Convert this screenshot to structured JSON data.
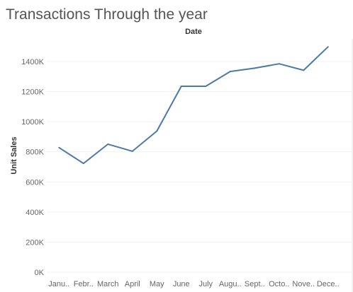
{
  "chart_data": {
    "type": "line",
    "title": "Transactions Through the year",
    "top_label": "Date",
    "ylabel": "Unit Sales",
    "categories": [
      "Janu..",
      "Febr..",
      "March",
      "April",
      "May",
      "June",
      "July",
      "Augu..",
      "Sept..",
      "Octo..",
      "Nove..",
      "Dece.."
    ],
    "series": [
      {
        "values": [
          828000,
          723000,
          851000,
          804000,
          938000,
          1236000,
          1236000,
          1334000,
          1356000,
          1385000,
          1342000,
          1498000
        ],
        "color": "#4e79a7"
      }
    ],
    "yticks": [
      0,
      200000,
      400000,
      600000,
      800000,
      1000000,
      1200000,
      1400000
    ],
    "ytick_labels": [
      "0K",
      "200K",
      "400K",
      "600K",
      "800K",
      "1000K",
      "1200K",
      "1400K"
    ],
    "ylim": [
      0,
      1560000
    ],
    "grid": true,
    "legend": "none"
  }
}
